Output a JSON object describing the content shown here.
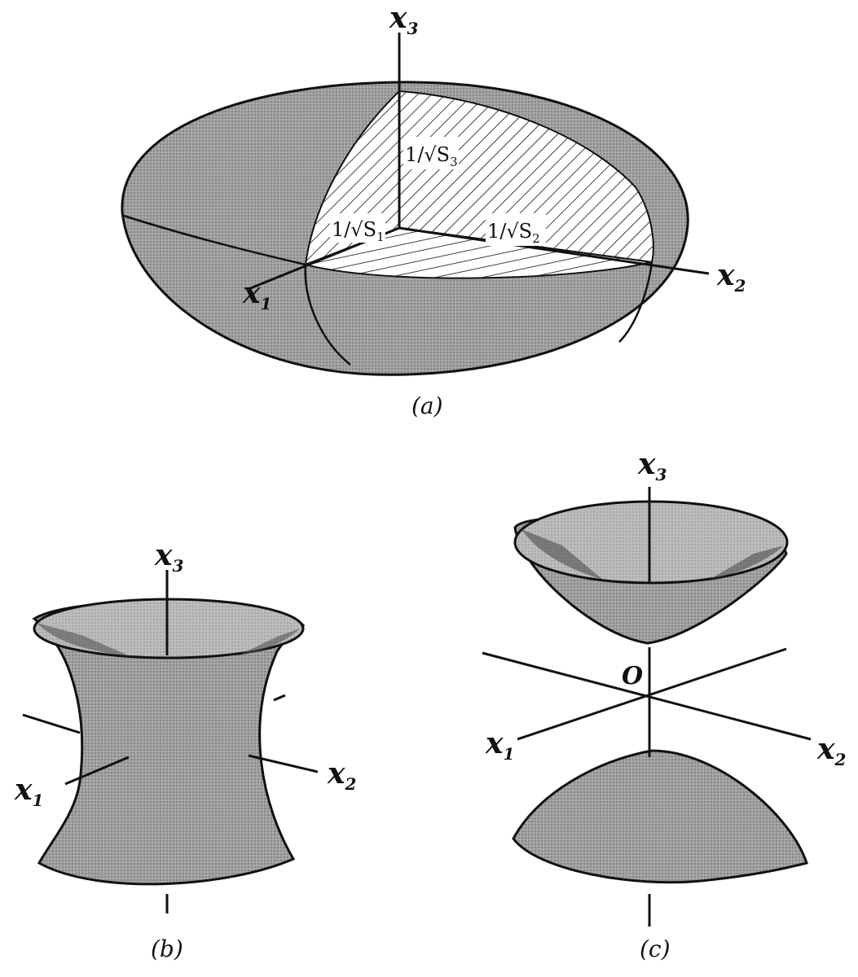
{
  "figure_a": {
    "caption": "(a)",
    "axes": {
      "x1": {
        "main": "x",
        "sub": "1"
      },
      "x2": {
        "main": "x",
        "sub": "2"
      },
      "x3": {
        "main": "x",
        "sub": "3"
      }
    },
    "lengths": {
      "s1": {
        "main": "1/√S",
        "sub": "1"
      },
      "s2": {
        "main": "1/√S",
        "sub": "2"
      },
      "s3": {
        "main": "1/√S",
        "sub": "3"
      }
    }
  },
  "figure_b": {
    "caption": "(b)",
    "axes": {
      "x1": {
        "main": "x",
        "sub": "1"
      },
      "x2": {
        "main": "x",
        "sub": "2"
      },
      "x3": {
        "main": "x",
        "sub": "3"
      }
    }
  },
  "figure_c": {
    "caption": "(c)",
    "origin": "O",
    "axes": {
      "x1": {
        "main": "x",
        "sub": "1"
      },
      "x2": {
        "main": "x",
        "sub": "2"
      },
      "x3": {
        "main": "x",
        "sub": "3"
      }
    }
  },
  "colors": {
    "ink": "#111111",
    "shade": "#8e8e8e",
    "shade_light": "#b4b4b4"
  }
}
